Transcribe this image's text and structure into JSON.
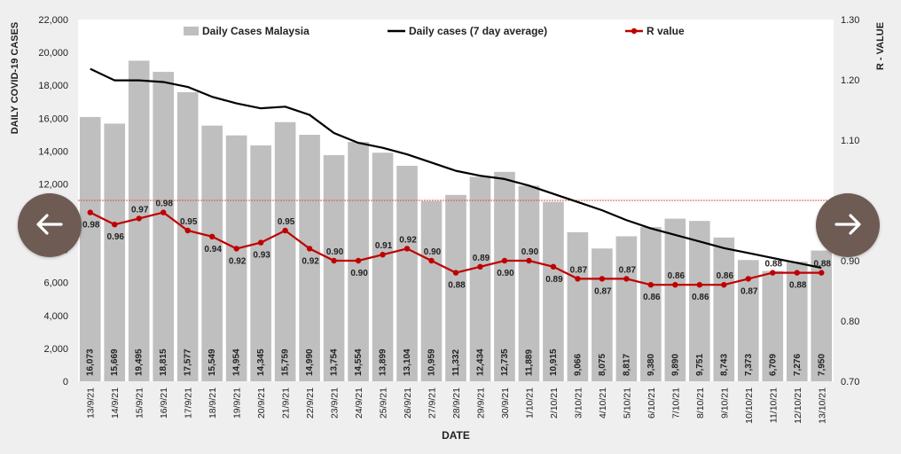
{
  "chart_data": {
    "type": "bar",
    "xlabel": "DATE",
    "ylabel": "DAILY COVID-19 CASES",
    "y2label": "R - VALUE",
    "ylim": [
      0,
      22000
    ],
    "y2lim": [
      0.7,
      1.3
    ],
    "yticks": [
      "0",
      "2,000",
      "4,000",
      "6,000",
      "8,000",
      "10,000",
      "12,000",
      "14,000",
      "16,000",
      "18,000",
      "20,000",
      "22,000"
    ],
    "y2ticks": [
      "0.70",
      "0.80",
      "0.90",
      "1.00",
      "1.10",
      "1.20",
      "1.30"
    ],
    "categories": [
      "13/9/21",
      "14/9/21",
      "15/9/21",
      "16/9/21",
      "17/9/21",
      "18/9/21",
      "19/9/21",
      "20/9/21",
      "21/9/21",
      "22/9/21",
      "23/9/21",
      "24/9/21",
      "25/9/21",
      "26/9/21",
      "27/9/21",
      "28/9/21",
      "29/9/21",
      "30/9/21",
      "1/10/21",
      "2/10/21",
      "3/10/21",
      "4/10/21",
      "5/10/21",
      "6/10/21",
      "7/10/21",
      "8/10/21",
      "9/10/21",
      "10/10/21",
      "11/10/21",
      "12/10/21",
      "13/10/21"
    ],
    "bar_labels": [
      "16,073",
      "15,669",
      "19,495",
      "18,815",
      "17,577",
      "15,549",
      "14,954",
      "14,345",
      "15,759",
      "14,990",
      "13,754",
      "14,554",
      "13,899",
      "13,104",
      "10,959",
      "11,332",
      "12,434",
      "12,735",
      "11,889",
      "10,915",
      "9,066",
      "8,075",
      "8,817",
      "9,380",
      "9,890",
      "9,751",
      "8,743",
      "7,373",
      "6,709",
      "7,276",
      "7,950"
    ],
    "series": [
      {
        "name": "Daily Cases Malaysia",
        "type": "bar",
        "axis": "left",
        "color": "#bfbfbf",
        "values": [
          16073,
          15669,
          19495,
          18815,
          17577,
          15549,
          14954,
          14345,
          15759,
          14990,
          13754,
          14554,
          13899,
          13104,
          10959,
          11332,
          12434,
          12735,
          11889,
          10915,
          9066,
          8075,
          8817,
          9380,
          9890,
          9751,
          8743,
          7373,
          6709,
          7276,
          7950
        ]
      },
      {
        "name": "Daily cases (7 day average)",
        "type": "line",
        "axis": "left",
        "color": "#000000",
        "values": [
          19000,
          18300,
          18300,
          18200,
          17900,
          17300,
          16900,
          16600,
          16700,
          16200,
          15100,
          14500,
          14200,
          13800,
          13300,
          12800,
          12500,
          12300,
          11900,
          11400,
          10900,
          10400,
          9800,
          9300,
          8900,
          8500,
          8100,
          7800,
          7500,
          7200,
          6900
        ]
      },
      {
        "name": "R value",
        "type": "line",
        "axis": "right",
        "color": "#c00000",
        "values": [
          0.98,
          0.96,
          0.97,
          0.98,
          0.95,
          0.94,
          0.92,
          0.93,
          0.95,
          0.92,
          0.9,
          0.9,
          0.91,
          0.92,
          0.9,
          0.88,
          0.89,
          0.9,
          0.9,
          0.89,
          0.87,
          0.87,
          0.87,
          0.86,
          0.86,
          0.86,
          0.86,
          0.87,
          0.88,
          0.88,
          0.88
        ],
        "labels": [
          "0.98",
          "0.96",
          "0.97",
          "0.98",
          "0.95",
          "0.94",
          "0.92",
          "0.93",
          "0.95",
          "0.92",
          "0.90",
          "0.90",
          "0.91",
          "0.92",
          "0.90",
          "0.88",
          "0.89",
          "0.90",
          "0.90",
          "0.89",
          "0.87",
          "0.87",
          "0.87",
          "0.86",
          "0.86",
          "0.86",
          "0.86",
          "0.87",
          "0.88",
          "0.88",
          "0.88"
        ]
      }
    ],
    "reference_line": {
      "axis": "right",
      "value": 1.0,
      "style": "dashed",
      "color": "#d9534f"
    },
    "legend": {
      "placement": "top"
    },
    "grid": false
  },
  "nav": {
    "prev_icon": "arrow-left-icon",
    "next_icon": "arrow-right-icon"
  }
}
